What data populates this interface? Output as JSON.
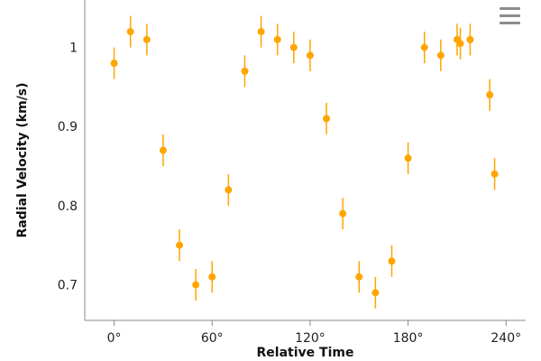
{
  "chart_data": {
    "type": "scatter",
    "title": "",
    "xlabel": "Relative Time",
    "ylabel": "Radial Velocity (km/s)",
    "xlim": [
      -18,
      252
    ],
    "ylim": [
      0.655,
      1.06
    ],
    "x_ticks": [
      0,
      60,
      120,
      180,
      240
    ],
    "x_tick_labels": [
      "0°",
      "60°",
      "120°",
      "180°",
      "240°"
    ],
    "y_ticks": [
      0.7,
      0.8,
      0.9,
      1.0
    ],
    "y_tick_labels": [
      "0.7",
      "0.8",
      "0.9",
      "1"
    ],
    "grid": false,
    "series": [
      {
        "name": "Radial Velocity",
        "color": "#FFA500",
        "error": 0.02,
        "points": [
          {
            "x": 0,
            "y": 0.98
          },
          {
            "x": 10,
            "y": 1.02
          },
          {
            "x": 20,
            "y": 1.01
          },
          {
            "x": 30,
            "y": 0.87
          },
          {
            "x": 40,
            "y": 0.75
          },
          {
            "x": 50,
            "y": 0.7
          },
          {
            "x": 60,
            "y": 0.71
          },
          {
            "x": 70,
            "y": 0.82
          },
          {
            "x": 80,
            "y": 0.97
          },
          {
            "x": 90,
            "y": 1.02
          },
          {
            "x": 100,
            "y": 1.01
          },
          {
            "x": 110,
            "y": 1.0
          },
          {
            "x": 120,
            "y": 0.99
          },
          {
            "x": 130,
            "y": 0.91
          },
          {
            "x": 140,
            "y": 0.79
          },
          {
            "x": 150,
            "y": 0.71
          },
          {
            "x": 160,
            "y": 0.69
          },
          {
            "x": 170,
            "y": 0.73
          },
          {
            "x": 180,
            "y": 0.86
          },
          {
            "x": 190,
            "y": 1.0
          },
          {
            "x": 200,
            "y": 0.99
          },
          {
            "x": 210,
            "y": 1.01
          },
          {
            "x": 212,
            "y": 1.005
          },
          {
            "x": 218,
            "y": 1.01
          },
          {
            "x": 230,
            "y": 0.94
          },
          {
            "x": 233,
            "y": 0.84
          }
        ]
      }
    ]
  },
  "menu": {
    "icon": "hamburger-menu-icon"
  }
}
